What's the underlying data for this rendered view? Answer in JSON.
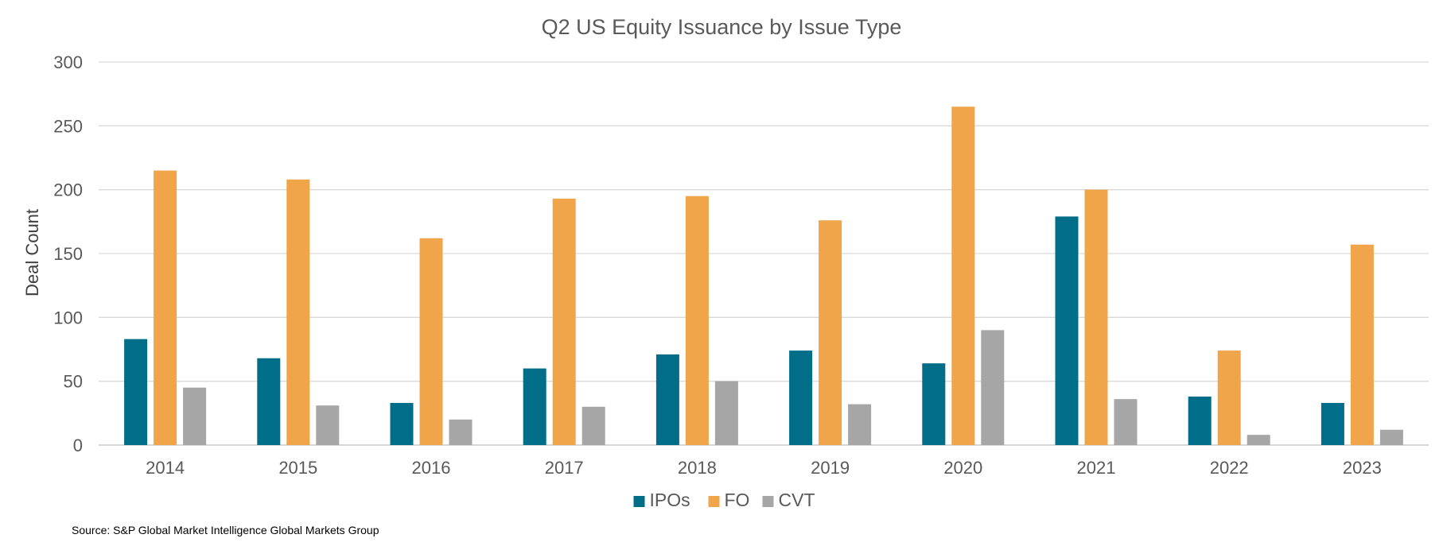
{
  "chart_data": {
    "type": "bar",
    "title": "Q2 US Equity Issuance by Issue Type",
    "xlabel": "",
    "ylabel": "Deal Count",
    "ylim": [
      0,
      300
    ],
    "yticks": [
      "0",
      "50",
      "100",
      "150",
      "200",
      "250",
      "300"
    ],
    "grid": true,
    "legend_position": "bottom",
    "categories": [
      "2014",
      "2015",
      "2016",
      "2017",
      "2018",
      "2019",
      "2020",
      "2021",
      "2022",
      "2023"
    ],
    "series": [
      {
        "name": "IPOs",
        "color": "#006E89",
        "values": [
          83,
          68,
          33,
          60,
          71,
          74,
          64,
          179,
          38,
          33
        ]
      },
      {
        "name": "FO",
        "color": "#F0A54A",
        "values": [
          215,
          208,
          162,
          193,
          195,
          176,
          265,
          200,
          74,
          157
        ]
      },
      {
        "name": "CVT",
        "color": "#A6A6A6",
        "values": [
          45,
          31,
          20,
          30,
          50,
          32,
          90,
          36,
          8,
          12
        ]
      }
    ]
  },
  "source_note": "Source: S&P Global Market Intelligence Global Markets Group"
}
